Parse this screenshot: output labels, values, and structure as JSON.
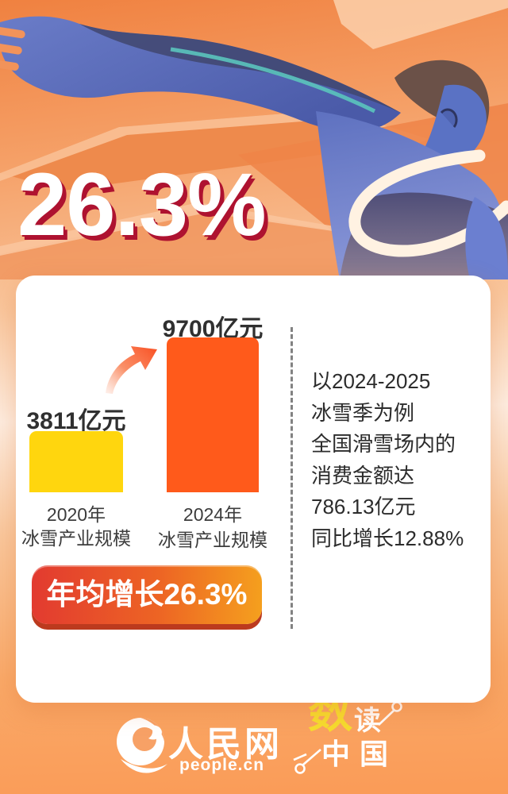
{
  "hero": {
    "value": "26.3%"
  },
  "chart_data": {
    "type": "bar",
    "categories": [
      "2020年冰雪产业规模",
      "2024年冰雪产业规模"
    ],
    "year_labels": [
      "2020年",
      "2024年"
    ],
    "cat_labels": [
      "冰雪产业规模",
      "冰雪产业规模"
    ],
    "values": [
      3811,
      9700
    ],
    "unit": "亿元",
    "value_labels": [
      "3811亿元",
      "9700亿元"
    ],
    "ymax": 9700,
    "bar_colors": [
      "#FFD60E",
      "#FF5A1B"
    ],
    "grid": false,
    "legend": false,
    "annotations": [
      "年均增长26.3%"
    ]
  },
  "side_note": {
    "lines": [
      "以2024-2025",
      "冰雪季为例",
      "全国滑雪场内的",
      "消费金额达",
      "786.13亿元",
      "同比增长12.88%"
    ]
  },
  "growth_pill": {
    "label": "年均增长26.3%"
  },
  "footer": {
    "people_cn": "人民网",
    "people_en": "people.cn",
    "datalogo_shu": "数",
    "datalogo_du": "读",
    "datalogo_zhongguo": "中国"
  },
  "colors": {
    "accent_red": "#AE1230",
    "bar_2020": "#FFD60E",
    "bar_2024": "#FF5A1B",
    "pill_red": "#E23A30",
    "pill_amber": "#F5A01E",
    "figure_blue": "#5A72C4",
    "background_orange": "#F49B5F",
    "logo_yellow": "#F6DC2E",
    "divider_gray": "#828282"
  }
}
